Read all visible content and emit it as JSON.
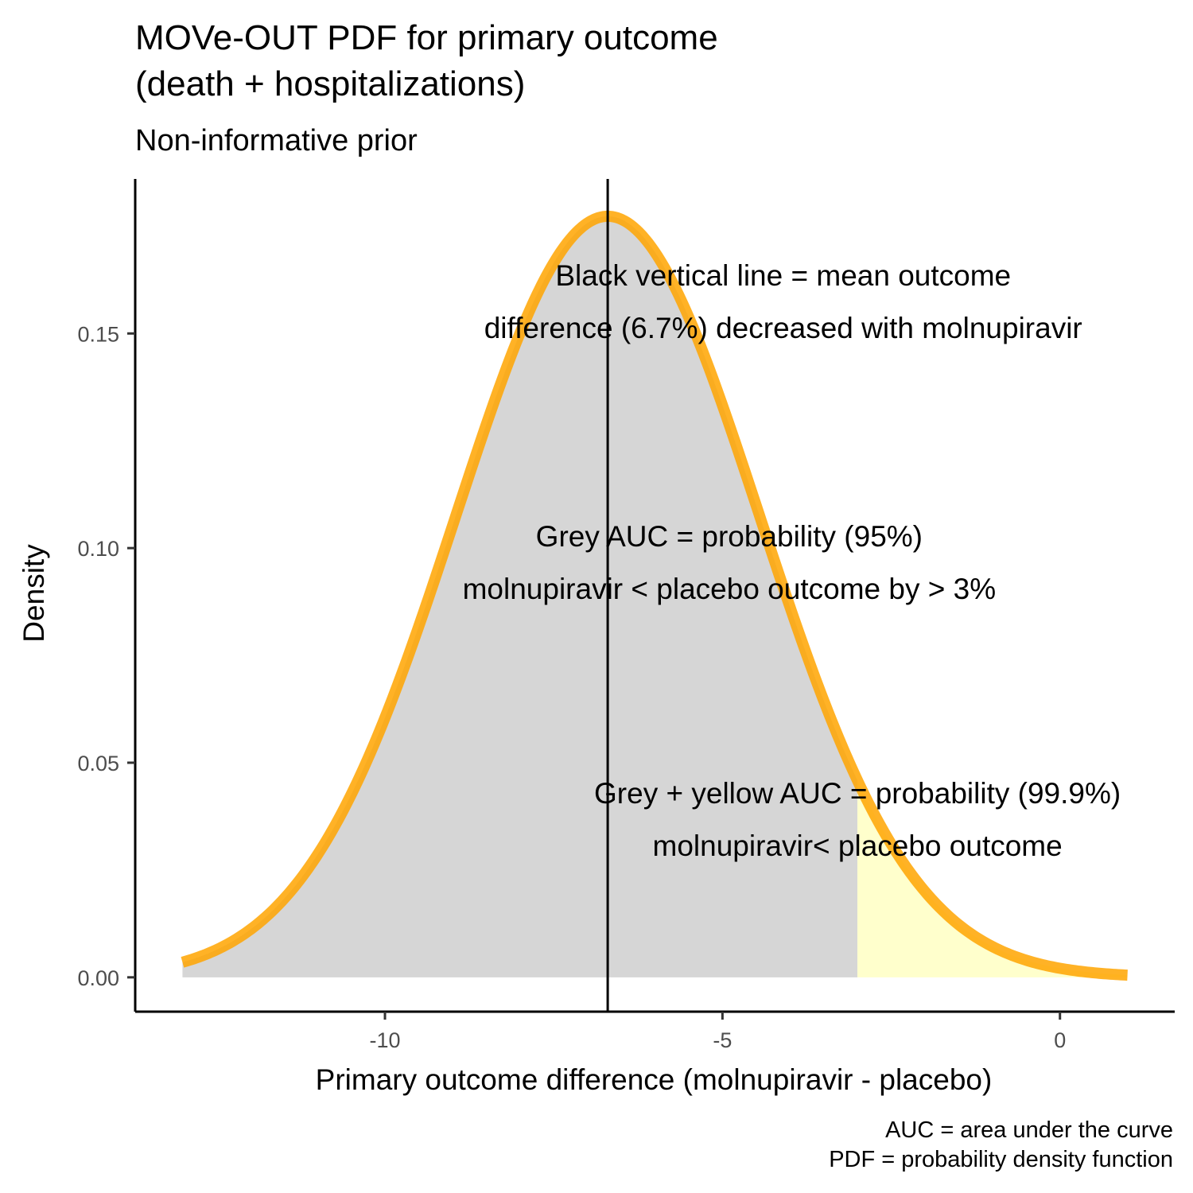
{
  "chart_data": {
    "type": "area",
    "title_lines": [
      "MOVe-OUT PDF for primary outcome",
      "(death + hospitalizations)"
    ],
    "subtitle": "Non-informative prior",
    "xlabel": "Primary outcome difference  (molnupiravir - placebo)",
    "ylabel": "Density",
    "xlim": [
      -13.7,
      1.7
    ],
    "ylim": [
      -0.008,
      0.186
    ],
    "x_ticks": [
      -10,
      -5,
      0
    ],
    "x_tick_labels": [
      "-10",
      "-5",
      "0"
    ],
    "y_ticks": [
      0.0,
      0.05,
      0.1,
      0.15
    ],
    "y_tick_labels": [
      "0.00",
      "0.05",
      "0.10",
      "0.15"
    ],
    "distribution": {
      "family": "normal",
      "mean": -6.7,
      "sd": 2.25
    },
    "curve_range": [
      -13,
      1
    ],
    "mean_line_x": -6.7,
    "threshold_x": -3,
    "fills": [
      {
        "name": "grey",
        "from": -13,
        "to": -3,
        "color": "#d6d6d6"
      },
      {
        "name": "yellow",
        "from": -3,
        "to": 1,
        "color": "#ffffcc"
      }
    ],
    "curve_color": "#ffa500",
    "mean_line_color": "#000000",
    "grid": false,
    "legend": "none",
    "annotations": [
      {
        "lines": [
          "Black vertical line = mean outcome",
          "difference (6.7%) decreased with molnupiravir"
        ],
        "x": -4.1,
        "y": 0.1575
      },
      {
        "lines": [
          "Grey AUC = probability (95%)",
          "molnupiravir < placebo outcome by > 3%"
        ],
        "x": -4.9,
        "y": 0.0967
      },
      {
        "lines": [
          "Grey + yellow AUC = probability (99.9%)",
          "molnupiravir< placebo outcome"
        ],
        "x": -3.0,
        "y": 0.0368
      }
    ],
    "caption_lines": [
      "AUC = area under the curve",
      "PDF = probability density function"
    ]
  }
}
